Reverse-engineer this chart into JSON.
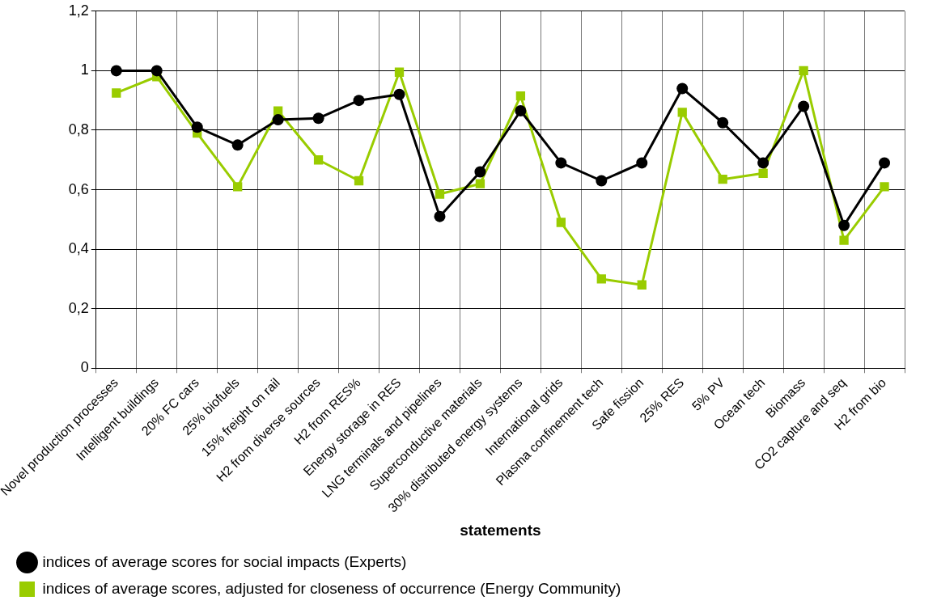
{
  "chart_data": {
    "type": "line",
    "xlabel": "statements",
    "categories": [
      "Novel production processes",
      "Intelligent buildings",
      "20% FC cars",
      "25% biofuels",
      "15% freight on rail",
      "H2 from diverse sources",
      "H2 from RES%",
      "Energy storage in RES",
      "LNG terminals and pipelines",
      "Superconductive materials",
      "30% distributed energy systems",
      "International grids",
      "Plasma confinement tech",
      "Safe fission",
      "25% RES",
      "5% PV",
      "Ocean tech",
      "Biomass",
      "CO2 capture and seq",
      "H2 from bio"
    ],
    "series": [
      {
        "name": "indices of average scores for social impacts (Experts)",
        "color": "#000000",
        "marker": "circle",
        "values": [
          1.0,
          1.0,
          0.81,
          0.75,
          0.835,
          0.84,
          0.9,
          0.92,
          0.51,
          0.66,
          0.865,
          0.69,
          0.63,
          0.69,
          0.94,
          0.825,
          0.69,
          0.88,
          0.48,
          0.69
        ]
      },
      {
        "name": "indices of average scores, adjusted for closeness of occurrence (Energy Community)",
        "color": "#99cc00",
        "marker": "square",
        "values": [
          0.925,
          0.98,
          0.79,
          0.61,
          0.865,
          0.7,
          0.63,
          0.995,
          0.585,
          0.62,
          0.915,
          0.49,
          0.3,
          0.28,
          0.86,
          0.635,
          0.655,
          1.0,
          0.43,
          0.61
        ]
      }
    ],
    "ylim": [
      0,
      1.2
    ],
    "yticks": [
      {
        "value": 0,
        "label": "0"
      },
      {
        "value": 0.2,
        "label": "0,2"
      },
      {
        "value": 0.4,
        "label": "0,4"
      },
      {
        "value": 0.6,
        "label": "0,6"
      },
      {
        "value": 0.8,
        "label": "0,8"
      },
      {
        "value": 1,
        "label": "1"
      },
      {
        "value": 1.2,
        "label": "1,2"
      }
    ],
    "grid": true,
    "legend": "bottom",
    "line_style": "solid"
  }
}
